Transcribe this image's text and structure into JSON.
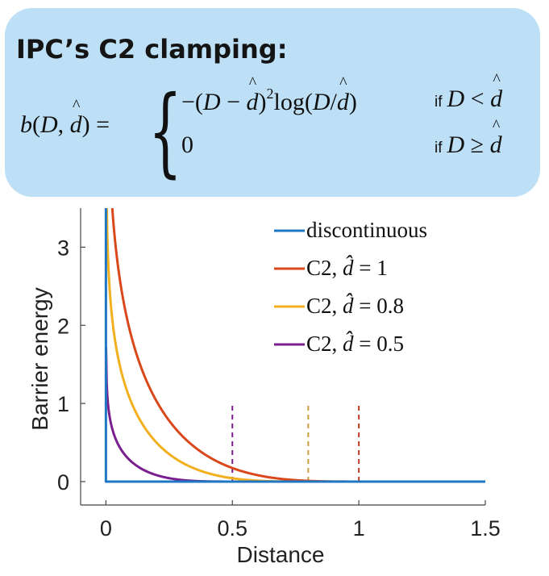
{
  "card": {
    "title": "IPC’s C2 clamping:",
    "if_word": "if"
  },
  "chart_data": {
    "type": "line",
    "xlabel": "Distance",
    "ylabel": "Barrier energy",
    "xlim": [
      -0.1,
      1.5
    ],
    "ylim": [
      -0.3,
      3.5
    ],
    "x_ticks": [
      "0",
      "0.5",
      "1",
      "1.5"
    ],
    "y_ticks": [
      "0",
      "1",
      "2",
      "3"
    ],
    "grid": false,
    "legend_position": "top-right",
    "series": [
      {
        "name": "discontinuous",
        "color": "#1f77c4",
        "formula": "step",
        "values": [
          [
            0,
            3.5
          ],
          [
            0,
            0
          ],
          [
            1.5,
            0
          ]
        ]
      },
      {
        "name": "C2, d̂ = 1",
        "legend_prefix": "C2, ",
        "legend_value": "1",
        "dhat": 1.0,
        "color": "#d9481a"
      },
      {
        "name": "C2, d̂ = 0.8",
        "legend_prefix": "C2, ",
        "legend_value": "0.8",
        "dhat": 0.8,
        "color": "#f2b01e"
      },
      {
        "name": "C2, d̂ = 0.5",
        "legend_prefix": "C2, ",
        "legend_value": "0.5",
        "dhat": 0.5,
        "color": "#7b1f8f"
      }
    ],
    "annotations": [
      {
        "type": "vline_dashed",
        "x": 0.5,
        "color": "#7b1f8f",
        "y_range": [
          0,
          1.0
        ]
      },
      {
        "type": "vline_dashed",
        "x": 0.8,
        "color": "#c9a23a",
        "y_range": [
          0,
          1.0
        ]
      },
      {
        "type": "vline_dashed",
        "x": 1.0,
        "color": "#c23b2a",
        "y_range": [
          0,
          1.0
        ]
      }
    ]
  }
}
